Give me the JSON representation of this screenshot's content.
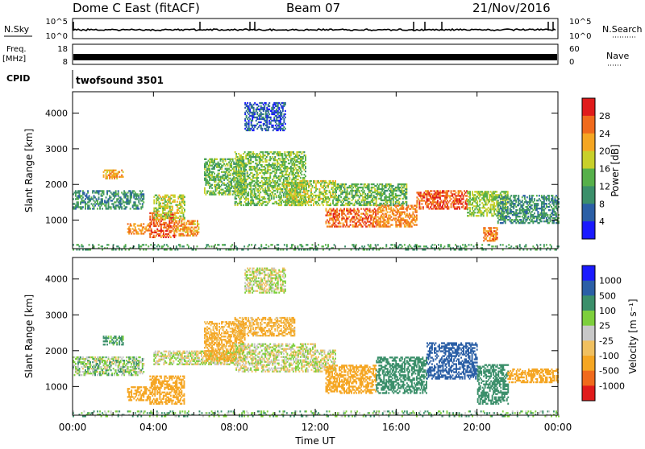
{
  "header": {
    "station": "Dome C East (fitACF)",
    "beam": "Beam 07",
    "date": "21/Nov/2016"
  },
  "top_panels": {
    "nsky_label": "N.Sky",
    "nsky_ticks": [
      "10^5",
      "10^0"
    ],
    "nsearch_label": "N.Search",
    "freq_label_line1": "Freq.",
    "freq_label_line2": "[MHz]",
    "freq_ticks": [
      "18",
      "8"
    ],
    "nave_label": "Nave",
    "nave_ticks": [
      "60",
      "0"
    ],
    "cpid_label": "CPID",
    "cpid_value": "twofsound 3501"
  },
  "colors": {
    "frame": "#000000",
    "power_scale": [
      "#1a1aff",
      "#2b5fa6",
      "#3b8f6a",
      "#56b04a",
      "#c8d02a",
      "#f5a623",
      "#f06a1c",
      "#e01b1b"
    ],
    "velocity_scale": [
      "#e01b1b",
      "#f06a1c",
      "#f5a623",
      "#f0c060",
      "#c8c8c8",
      "#7dcf3c",
      "#3b8f6a",
      "#2b5fa6",
      "#1a1aff"
    ]
  },
  "chart_data": [
    {
      "type": "heatmap",
      "title": "",
      "xlabel": "",
      "ylabel": "Slant Range [km]",
      "y_ticks": [
        "1000",
        "2000",
        "3000",
        "4000"
      ],
      "colorbar_label": "Power [dB]",
      "colorbar_ticks": [
        "4",
        "8",
        "12",
        "16",
        "20",
        "24",
        "28"
      ],
      "regions": [
        {
          "t0": 0.0,
          "t1": 3.5,
          "r0": 1300,
          "r1": 1800,
          "value": 10
        },
        {
          "t0": 1.5,
          "t1": 2.5,
          "r0": 2150,
          "r1": 2400,
          "value": 22
        },
        {
          "t0": 2.7,
          "t1": 3.8,
          "r0": 600,
          "r1": 900,
          "value": 24
        },
        {
          "t0": 3.8,
          "t1": 5.0,
          "r0": 500,
          "r1": 1200,
          "value": 27
        },
        {
          "t0": 4.0,
          "t1": 5.5,
          "r0": 1000,
          "r1": 1700,
          "value": 18
        },
        {
          "t0": 5.0,
          "t1": 6.2,
          "r0": 550,
          "r1": 1000,
          "value": 23
        },
        {
          "t0": 6.5,
          "t1": 8.5,
          "r0": 1700,
          "r1": 2700,
          "value": 14
        },
        {
          "t0": 8.0,
          "t1": 11.5,
          "r0": 1400,
          "r1": 2900,
          "value": 15
        },
        {
          "t0": 8.5,
          "t1": 10.5,
          "r0": 3500,
          "r1": 4300,
          "value": 6
        },
        {
          "t0": 10.5,
          "t1": 13.0,
          "r0": 1400,
          "r1": 2100,
          "value": 17
        },
        {
          "t0": 12.5,
          "t1": 15.0,
          "r0": 800,
          "r1": 1300,
          "value": 26
        },
        {
          "t0": 13.0,
          "t1": 16.5,
          "r0": 1400,
          "r1": 2000,
          "value": 14
        },
        {
          "t0": 15.0,
          "t1": 17.0,
          "r0": 800,
          "r1": 1400,
          "value": 24
        },
        {
          "t0": 17.0,
          "t1": 19.5,
          "r0": 1300,
          "r1": 1800,
          "value": 27
        },
        {
          "t0": 19.5,
          "t1": 21.5,
          "r0": 1100,
          "r1": 1800,
          "value": 16
        },
        {
          "t0": 20.3,
          "t1": 21.0,
          "r0": 400,
          "r1": 800,
          "value": 25
        },
        {
          "t0": 21.0,
          "t1": 24.0,
          "r0": 900,
          "r1": 1700,
          "value": 10
        },
        {
          "t0": 0.0,
          "t1": 24.0,
          "r0": 150,
          "r1": 300,
          "value": 12
        }
      ]
    },
    {
      "type": "heatmap",
      "title": "",
      "xlabel": "Time UT",
      "ylabel": "Slant Range [km]",
      "x_ticks": [
        "00:00",
        "04:00",
        "08:00",
        "12:00",
        "16:00",
        "20:00",
        "00:00"
      ],
      "y_ticks": [
        "1000",
        "2000",
        "3000",
        "4000"
      ],
      "colorbar_label": "Velocity [m s⁻¹]",
      "colorbar_ticks": [
        "1000",
        "500",
        "100",
        "25",
        "-25",
        "-100",
        "-500",
        "-1000"
      ],
      "regions": [
        {
          "t0": 0.0,
          "t1": 3.5,
          "r0": 1300,
          "r1": 1800,
          "value": 50
        },
        {
          "t0": 1.5,
          "t1": 2.5,
          "r0": 2150,
          "r1": 2400,
          "value": 150
        },
        {
          "t0": 2.7,
          "t1": 3.8,
          "r0": 600,
          "r1": 1000,
          "value": -200
        },
        {
          "t0": 3.8,
          "t1": 5.5,
          "r0": 500,
          "r1": 1300,
          "value": -400
        },
        {
          "t0": 4.0,
          "t1": 8.0,
          "r0": 1600,
          "r1": 2000,
          "value": 0
        },
        {
          "t0": 6.5,
          "t1": 8.5,
          "r0": 1700,
          "r1": 2800,
          "value": -150
        },
        {
          "t0": 8.0,
          "t1": 12.0,
          "r0": 1400,
          "r1": 2200,
          "value": 0
        },
        {
          "t0": 8.5,
          "t1": 10.5,
          "r0": 3600,
          "r1": 4300,
          "value": 0
        },
        {
          "t0": 8.0,
          "t1": 11.0,
          "r0": 2400,
          "r1": 2900,
          "value": -120
        },
        {
          "t0": 12.0,
          "t1": 13.0,
          "r0": 1400,
          "r1": 2000,
          "value": 0
        },
        {
          "t0": 12.5,
          "t1": 15.0,
          "r0": 800,
          "r1": 1600,
          "value": -300
        },
        {
          "t0": 15.0,
          "t1": 17.5,
          "r0": 800,
          "r1": 1800,
          "value": 200
        },
        {
          "t0": 17.5,
          "t1": 20.0,
          "r0": 1200,
          "r1": 2200,
          "value": 700
        },
        {
          "t0": 20.0,
          "t1": 21.5,
          "r0": 500,
          "r1": 1600,
          "value": 200
        },
        {
          "t0": 21.5,
          "t1": 24.0,
          "r0": 1100,
          "r1": 1500,
          "value": -200
        },
        {
          "t0": 0.0,
          "t1": 24.0,
          "r0": 150,
          "r1": 300,
          "value": 80
        }
      ]
    }
  ]
}
